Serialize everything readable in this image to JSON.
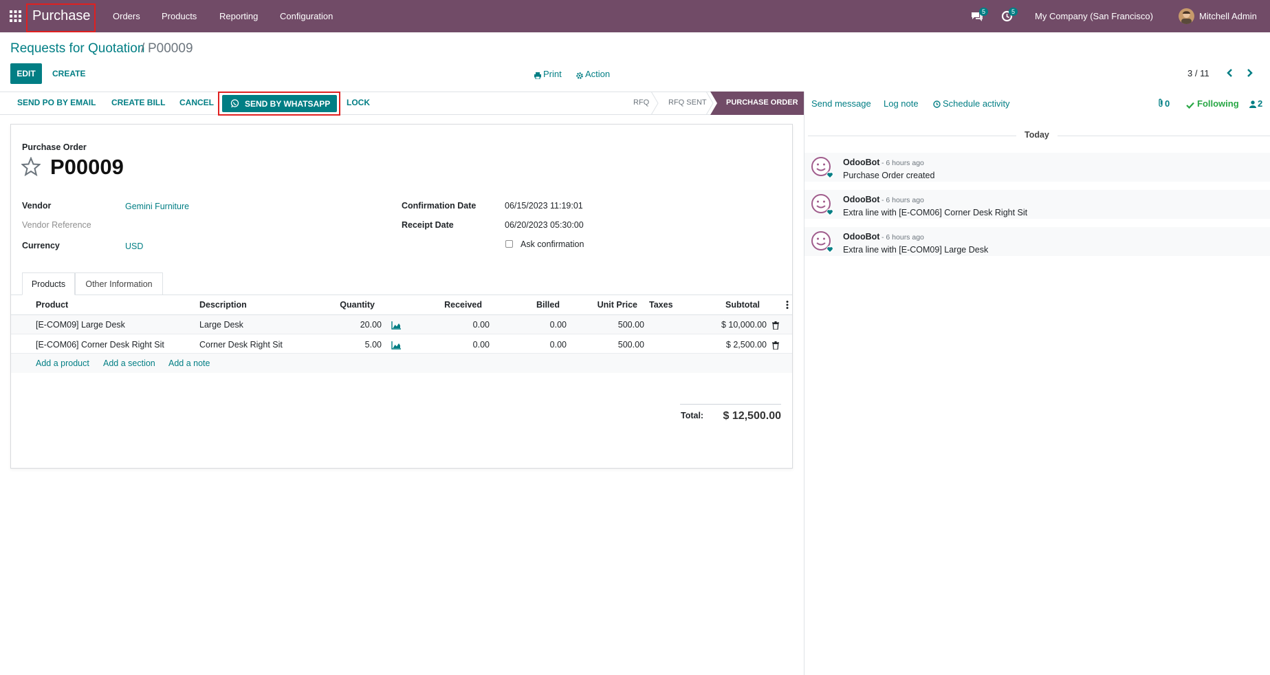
{
  "navbar": {
    "app_name": "Purchase",
    "menus": [
      "Orders",
      "Products",
      "Reporting",
      "Configuration"
    ],
    "messages_count": "5",
    "activities_count": "5",
    "company": "My Company (San Francisco)",
    "user": "Mitchell Admin"
  },
  "breadcrumb": {
    "parent": "Requests for Quotation",
    "separator": "/",
    "current": "P00009"
  },
  "controls": {
    "edit": "EDIT",
    "create": "CREATE",
    "print": "Print",
    "action": "Action",
    "pager": "3 / 11"
  },
  "statusbar": {
    "buttons": {
      "send_po": "SEND PO BY EMAIL",
      "create_bill": "CREATE BILL",
      "cancel": "CANCEL",
      "whatsapp": "SEND BY WHATSAPP",
      "lock": "LOCK"
    },
    "stages": [
      "RFQ",
      "RFQ SENT",
      "PURCHASE ORDER"
    ],
    "active_stage": "PURCHASE ORDER"
  },
  "form": {
    "doc_type": "Purchase Order",
    "name": "P00009",
    "vendor_label": "Vendor",
    "vendor": "Gemini Furniture",
    "vendor_ref_label": "Vendor Reference",
    "currency_label": "Currency",
    "currency": "USD",
    "confirmation_label": "Confirmation Date",
    "confirmation_date": "06/15/2023 11:19:01",
    "receipt_label": "Receipt Date",
    "receipt_date": "06/20/2023 05:30:00",
    "ask_confirmation": "Ask confirmation",
    "tabs": [
      "Products",
      "Other Information"
    ],
    "table": {
      "headers": {
        "product": "Product",
        "description": "Description",
        "quantity": "Quantity",
        "received": "Received",
        "billed": "Billed",
        "unit_price": "Unit Price",
        "taxes": "Taxes",
        "subtotal": "Subtotal"
      },
      "rows": [
        {
          "product": "[E-COM09] Large Desk",
          "description": "Large Desk",
          "quantity": "20.00",
          "received": "0.00",
          "billed": "0.00",
          "unit_price": "500.00",
          "taxes": "",
          "subtotal": "$ 10,000.00"
        },
        {
          "product": "[E-COM06] Corner Desk Right Sit",
          "description": "Corner Desk Right Sit",
          "quantity": "5.00",
          "received": "0.00",
          "billed": "0.00",
          "unit_price": "500.00",
          "taxes": "",
          "subtotal": "$ 2,500.00"
        }
      ],
      "add_product": "Add a product",
      "add_section": "Add a section",
      "add_note": "Add a note"
    },
    "total_label": "Total:",
    "total": "$ 12,500.00"
  },
  "chatter": {
    "send_message": "Send message",
    "log_note": "Log note",
    "schedule_activity": "Schedule activity",
    "attachments": "0",
    "following": "Following",
    "followers": "2",
    "date_sep": "Today",
    "messages": [
      {
        "author": "OdooBot",
        "time": "- 6 hours ago",
        "body": "Purchase Order created"
      },
      {
        "author": "OdooBot",
        "time": "- 6 hours ago",
        "body": "Extra line with [E-COM06] Corner Desk Right Sit"
      },
      {
        "author": "OdooBot",
        "time": "- 6 hours ago",
        "body": "Extra line with [E-COM09] Large Desk"
      }
    ]
  },
  "colors": {
    "brand": "#714B67",
    "accent": "#017e84",
    "highlight": "#e02020"
  }
}
